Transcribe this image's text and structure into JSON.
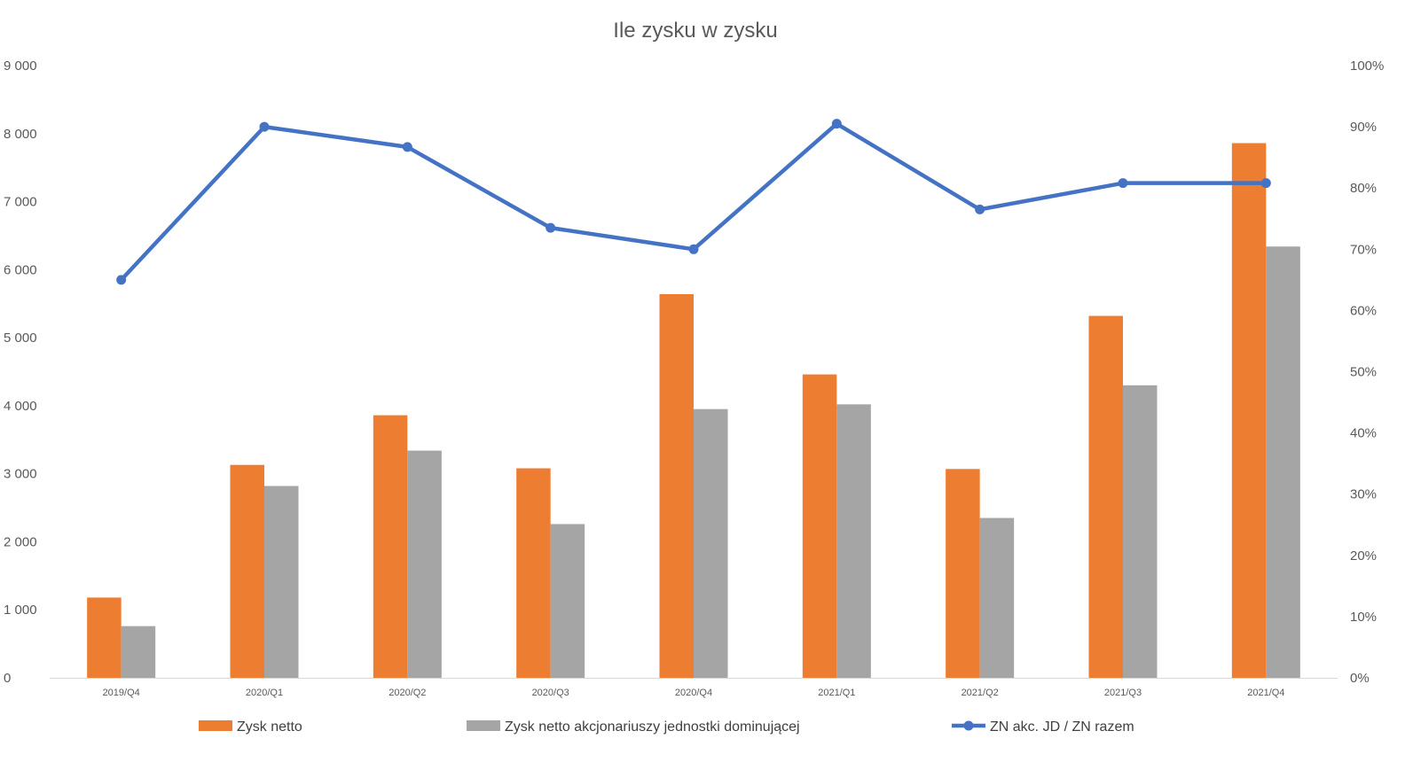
{
  "chart_data": {
    "type": "bar",
    "title": "Ile zysku w zysku",
    "categories": [
      "2019/Q4",
      "2020/Q1",
      "2020/Q2",
      "2020/Q3",
      "2020/Q4",
      "2021/Q1",
      "2021/Q2",
      "2021/Q3",
      "2021/Q4"
    ],
    "series": [
      {
        "name": "Zysk netto",
        "type": "bar",
        "axis": "left",
        "color": "#ED7D31",
        "values": [
          1180,
          3130,
          3860,
          3080,
          5640,
          4460,
          3070,
          5320,
          7860
        ]
      },
      {
        "name": "Zysk netto akcjonariuszy jednostki dominującej",
        "type": "bar",
        "axis": "left",
        "color": "#A5A5A5",
        "values": [
          760,
          2820,
          3340,
          2260,
          3950,
          4020,
          2350,
          4300,
          6340
        ]
      },
      {
        "name": "ZN akc. JD / ZN razem",
        "type": "line",
        "axis": "right",
        "color": "#4472C4",
        "marker": "circle",
        "values": [
          0.65,
          0.9,
          0.867,
          0.735,
          0.7,
          0.905,
          0.765,
          0.808,
          0.808
        ]
      }
    ],
    "y_left": {
      "ylim": [
        0,
        9000
      ],
      "ticks": [
        0,
        1000,
        2000,
        3000,
        4000,
        5000,
        6000,
        7000,
        8000,
        9000
      ],
      "tick_labels": [
        "0",
        "1 000",
        "2 000",
        "3 000",
        "4 000",
        "5 000",
        "6 000",
        "7 000",
        "8 000",
        "9 000"
      ]
    },
    "y_right": {
      "ylim": [
        0,
        1
      ],
      "ticks": [
        0,
        0.1,
        0.2,
        0.3,
        0.4,
        0.5,
        0.6,
        0.7,
        0.8,
        0.9,
        1.0
      ],
      "tick_labels": [
        "0%",
        "10%",
        "20%",
        "30%",
        "40%",
        "50%",
        "60%",
        "70%",
        "80%",
        "90%",
        "100%"
      ]
    },
    "grid": false,
    "legend_position": "bottom"
  }
}
